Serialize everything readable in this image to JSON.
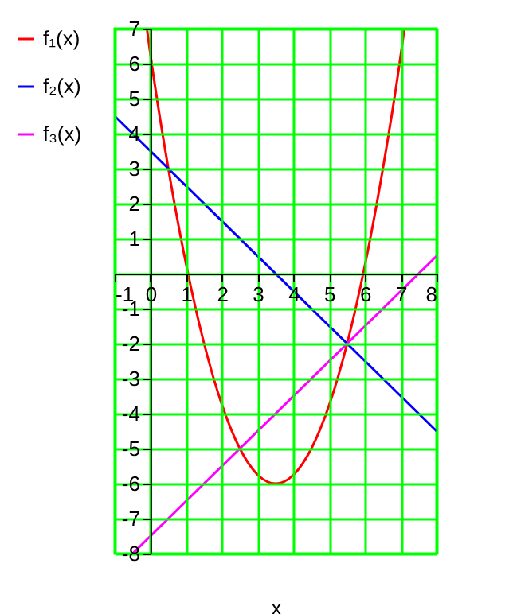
{
  "chart_data": {
    "type": "line",
    "xlabel": "x",
    "xlim": [
      -1,
      8
    ],
    "ylim": [
      -8,
      7
    ],
    "xticks": [
      -1,
      0,
      1,
      2,
      3,
      4,
      5,
      6,
      7,
      8
    ],
    "yticks": [
      -8,
      -7,
      -6,
      -5,
      -4,
      -3,
      -2,
      -1,
      {
        "value": 0,
        "label": null
      },
      1,
      2,
      3,
      4,
      5,
      6,
      7
    ],
    "grid": true,
    "legend": "left",
    "line_style": "solid",
    "marker": "none",
    "series": [
      {
        "name": "f₁(x)",
        "color": "#ff0000",
        "x": [
          -0.1,
          0,
          0.5,
          1,
          1.5,
          2,
          2.5,
          3,
          3.5,
          4,
          4.5,
          5,
          5.5,
          6,
          6.5,
          7,
          7.1
        ],
        "values": [
          7.0,
          6.25,
          3,
          0.25,
          -2,
          -3.75,
          -5,
          -5.75,
          -6,
          -5.75,
          -5,
          -3.75,
          -2,
          0.25,
          3,
          6.25,
          7.0
        ]
      },
      {
        "name": "f₂(x)",
        "color": "#0000ff",
        "x": [
          -1,
          8
        ],
        "values": [
          4.5,
          -4.5
        ]
      },
      {
        "name": "f₃(x)",
        "color": "#ff00ff",
        "x": [
          -0.5,
          8
        ],
        "values": [
          -8,
          0.5
        ]
      }
    ]
  }
}
